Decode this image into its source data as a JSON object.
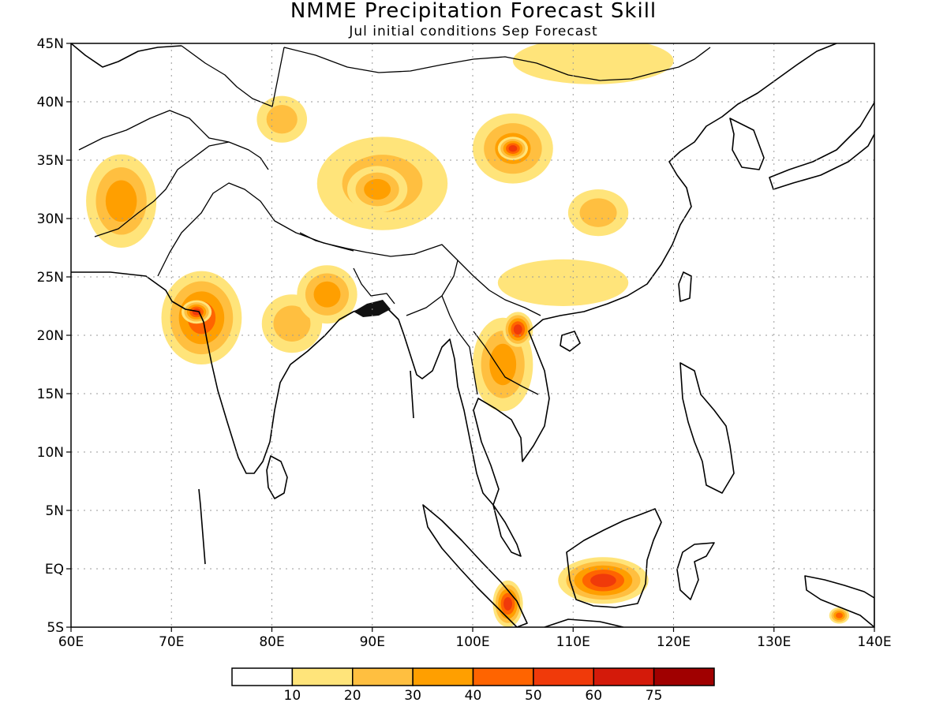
{
  "title": "NMME Precipitation Forecast Skill",
  "subtitle": "Jul initial conditions  Sep Forecast",
  "map": {
    "lon_range": [
      60,
      140
    ],
    "lat_range": [
      -5,
      45
    ],
    "lon_ticks": [
      {
        "value": 60,
        "label": "60E"
      },
      {
        "value": 70,
        "label": "70E"
      },
      {
        "value": 80,
        "label": "80E"
      },
      {
        "value": 90,
        "label": "90E"
      },
      {
        "value": 100,
        "label": "100E"
      },
      {
        "value": 110,
        "label": "110E"
      },
      {
        "value": 120,
        "label": "120E"
      },
      {
        "value": 130,
        "label": "130E"
      },
      {
        "value": 140,
        "label": "140E"
      }
    ],
    "lat_ticks": [
      {
        "value": 45,
        "label": "45N"
      },
      {
        "value": 40,
        "label": "40N"
      },
      {
        "value": 35,
        "label": "35N"
      },
      {
        "value": 30,
        "label": "30N"
      },
      {
        "value": 25,
        "label": "25N"
      },
      {
        "value": 20,
        "label": "20N"
      },
      {
        "value": 15,
        "label": "15N"
      },
      {
        "value": 10,
        "label": "10N"
      },
      {
        "value": 5,
        "label": "5N"
      },
      {
        "value": 0,
        "label": "EQ"
      },
      {
        "value": -5,
        "label": "5S"
      }
    ],
    "grid": true
  },
  "colorbar": {
    "colors": [
      "#ffffff",
      "#ffe47a",
      "#ffbf40",
      "#ff9f00",
      "#ff6400",
      "#f03a0a",
      "#d41a0a",
      "#a00000"
    ],
    "labels": [
      "10",
      "20",
      "30",
      "40",
      "50",
      "60",
      "75"
    ]
  },
  "skill_regions": [
    {
      "name": "afghanistan",
      "lon": 65,
      "lat": 31.5,
      "rx": 3.5,
      "ry": 4.0,
      "level": 3
    },
    {
      "name": "west-india",
      "lon": 73,
      "lat": 21.5,
      "rx": 4.0,
      "ry": 4.0,
      "level": 4
    },
    {
      "name": "west-india-core",
      "lon": 72.5,
      "lat": 22,
      "rx": 1.5,
      "ry": 1.0,
      "level": 5
    },
    {
      "name": "central-india",
      "lon": 82,
      "lat": 21.0,
      "rx": 3.0,
      "ry": 2.5,
      "level": 2
    },
    {
      "name": "northeast-india",
      "lon": 85.5,
      "lat": 23.5,
      "rx": 3.0,
      "ry": 2.5,
      "level": 3
    },
    {
      "name": "tarim-basin",
      "lon": 81,
      "lat": 38.5,
      "rx": 2.5,
      "ry": 2.0,
      "level": 2
    },
    {
      "name": "tibet",
      "lon": 91,
      "lat": 33.0,
      "rx": 6.5,
      "ry": 4.0,
      "level": 2
    },
    {
      "name": "tibet-core",
      "lon": 90.5,
      "lat": 32.5,
      "rx": 3.0,
      "ry": 2.0,
      "level": 3
    },
    {
      "name": "gansu",
      "lon": 104,
      "lat": 36.0,
      "rx": 4.0,
      "ry": 3.0,
      "level": 3
    },
    {
      "name": "gansu-core",
      "lon": 104,
      "lat": 36.0,
      "rx": 1.5,
      "ry": 1.0,
      "level": 5
    },
    {
      "name": "sichuan",
      "lon": 112.5,
      "lat": 30.5,
      "rx": 3.0,
      "ry": 2.0,
      "level": 2
    },
    {
      "name": "south-china",
      "lon": 109,
      "lat": 24.5,
      "rx": 6.5,
      "ry": 2.0,
      "level": 1
    },
    {
      "name": "laos",
      "lon": 103,
      "lat": 17.5,
      "rx": 3.0,
      "ry": 4.0,
      "level": 3
    },
    {
      "name": "vietnam-north",
      "lon": 104.5,
      "lat": 20.5,
      "rx": 1.5,
      "ry": 1.5,
      "level": 5
    },
    {
      "name": "mongolia",
      "lon": 112,
      "lat": 43.5,
      "rx": 8.0,
      "ry": 2.0,
      "level": 1
    },
    {
      "name": "borneo",
      "lon": 113,
      "lat": -1.0,
      "rx": 4.5,
      "ry": 2.0,
      "level": 5
    },
    {
      "name": "sumatra",
      "lon": 103.5,
      "lat": -3.0,
      "rx": 1.5,
      "ry": 2.0,
      "level": 5
    },
    {
      "name": "new-guinea",
      "lon": 136.5,
      "lat": -4.0,
      "rx": 1.0,
      "ry": 0.7,
      "level": 4
    }
  ]
}
